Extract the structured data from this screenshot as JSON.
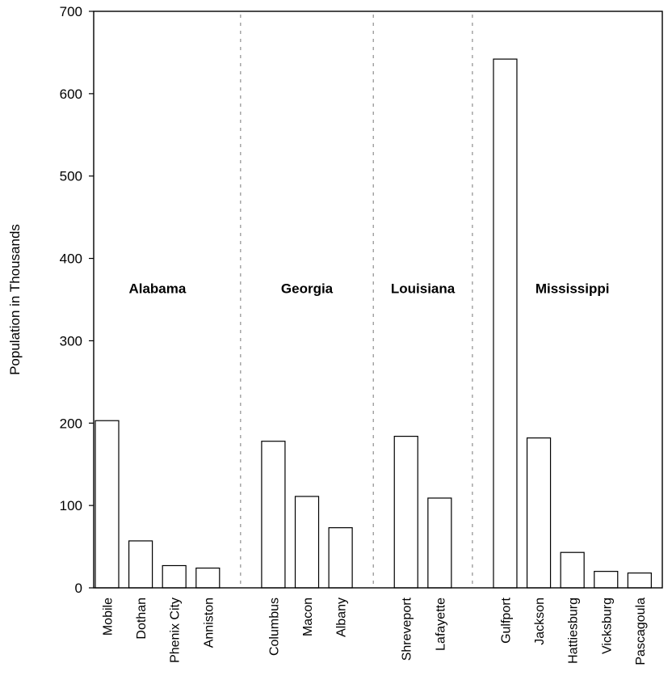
{
  "chart_data": {
    "type": "bar",
    "title": "",
    "xlabel": "",
    "ylabel": "Population in Thousands",
    "ylim": [
      0,
      700
    ],
    "yticks": [
      0,
      100,
      200,
      300,
      400,
      500,
      600,
      700
    ],
    "grid": false,
    "groups": [
      {
        "name": "Alabama",
        "categories": [
          "Mobile",
          "Dothan",
          "Phenix City",
          "Anniston"
        ],
        "values": [
          203,
          57,
          27,
          24
        ]
      },
      {
        "name": "Georgia",
        "categories": [
          "Columbus",
          "Macon",
          "Albany"
        ],
        "values": [
          178,
          111,
          73
        ]
      },
      {
        "name": "Louisiana",
        "categories": [
          "Shreveport",
          "Lafayette"
        ],
        "values": [
          184,
          109
        ]
      },
      {
        "name": "Mississippi",
        "categories": [
          "Gulfport",
          "Jackson",
          "Hattiesburg",
          "Vicksburg",
          "Pascagoula"
        ],
        "values": [
          642,
          182,
          43,
          20,
          18
        ]
      }
    ]
  }
}
